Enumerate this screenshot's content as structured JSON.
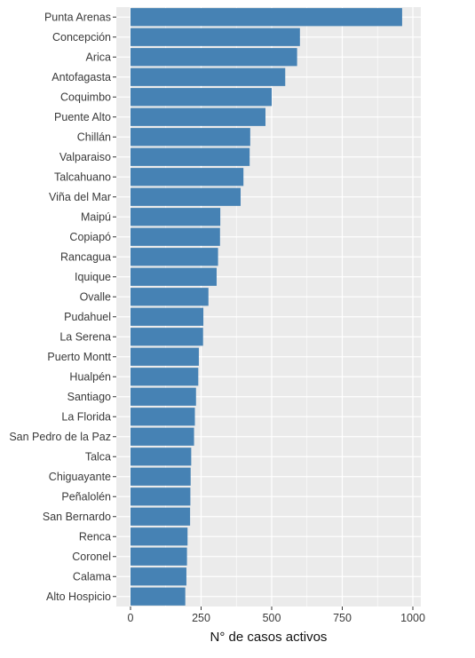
{
  "chart_data": {
    "type": "bar",
    "orientation": "horizontal",
    "title": "",
    "xlabel": "N° de casos activos",
    "ylabel": "",
    "xlim": [
      0,
      1000
    ],
    "xticks": [
      0,
      250,
      500,
      750,
      1000
    ],
    "xtick_labels": [
      "0",
      "250",
      "500",
      "750",
      "1000"
    ],
    "grid": true,
    "legend": "none",
    "colors": {
      "bar": "#4682b4",
      "panel": "#ebebeb",
      "grid": "#ffffff",
      "tick": "#333333"
    },
    "categories": [
      "Punta Arenas",
      "Concepción",
      "Arica",
      "Antofagasta",
      "Coquimbo",
      "Puente Alto",
      "Chillán",
      "Valparaiso",
      "Talcahuano",
      "Viña del Mar",
      "Maipú",
      "Copiapó",
      "Rancagua",
      "Iquique",
      "Ovalle",
      "Pudahuel",
      "La Serena",
      "Puerto Montt",
      "Hualpén",
      "Santiago",
      "La Florida",
      "San Pedro de la Paz",
      "Talca",
      "Chiguayante",
      "Peñalolén",
      "San Bernardo",
      "Renca",
      "Coronel",
      "Calama",
      "Alto Hospicio"
    ],
    "values": [
      962,
      600,
      590,
      548,
      500,
      478,
      424,
      422,
      400,
      390,
      318,
      317,
      310,
      305,
      276,
      258,
      257,
      242,
      240,
      232,
      228,
      225,
      215,
      213,
      212,
      211,
      202,
      200,
      198,
      194
    ]
  }
}
